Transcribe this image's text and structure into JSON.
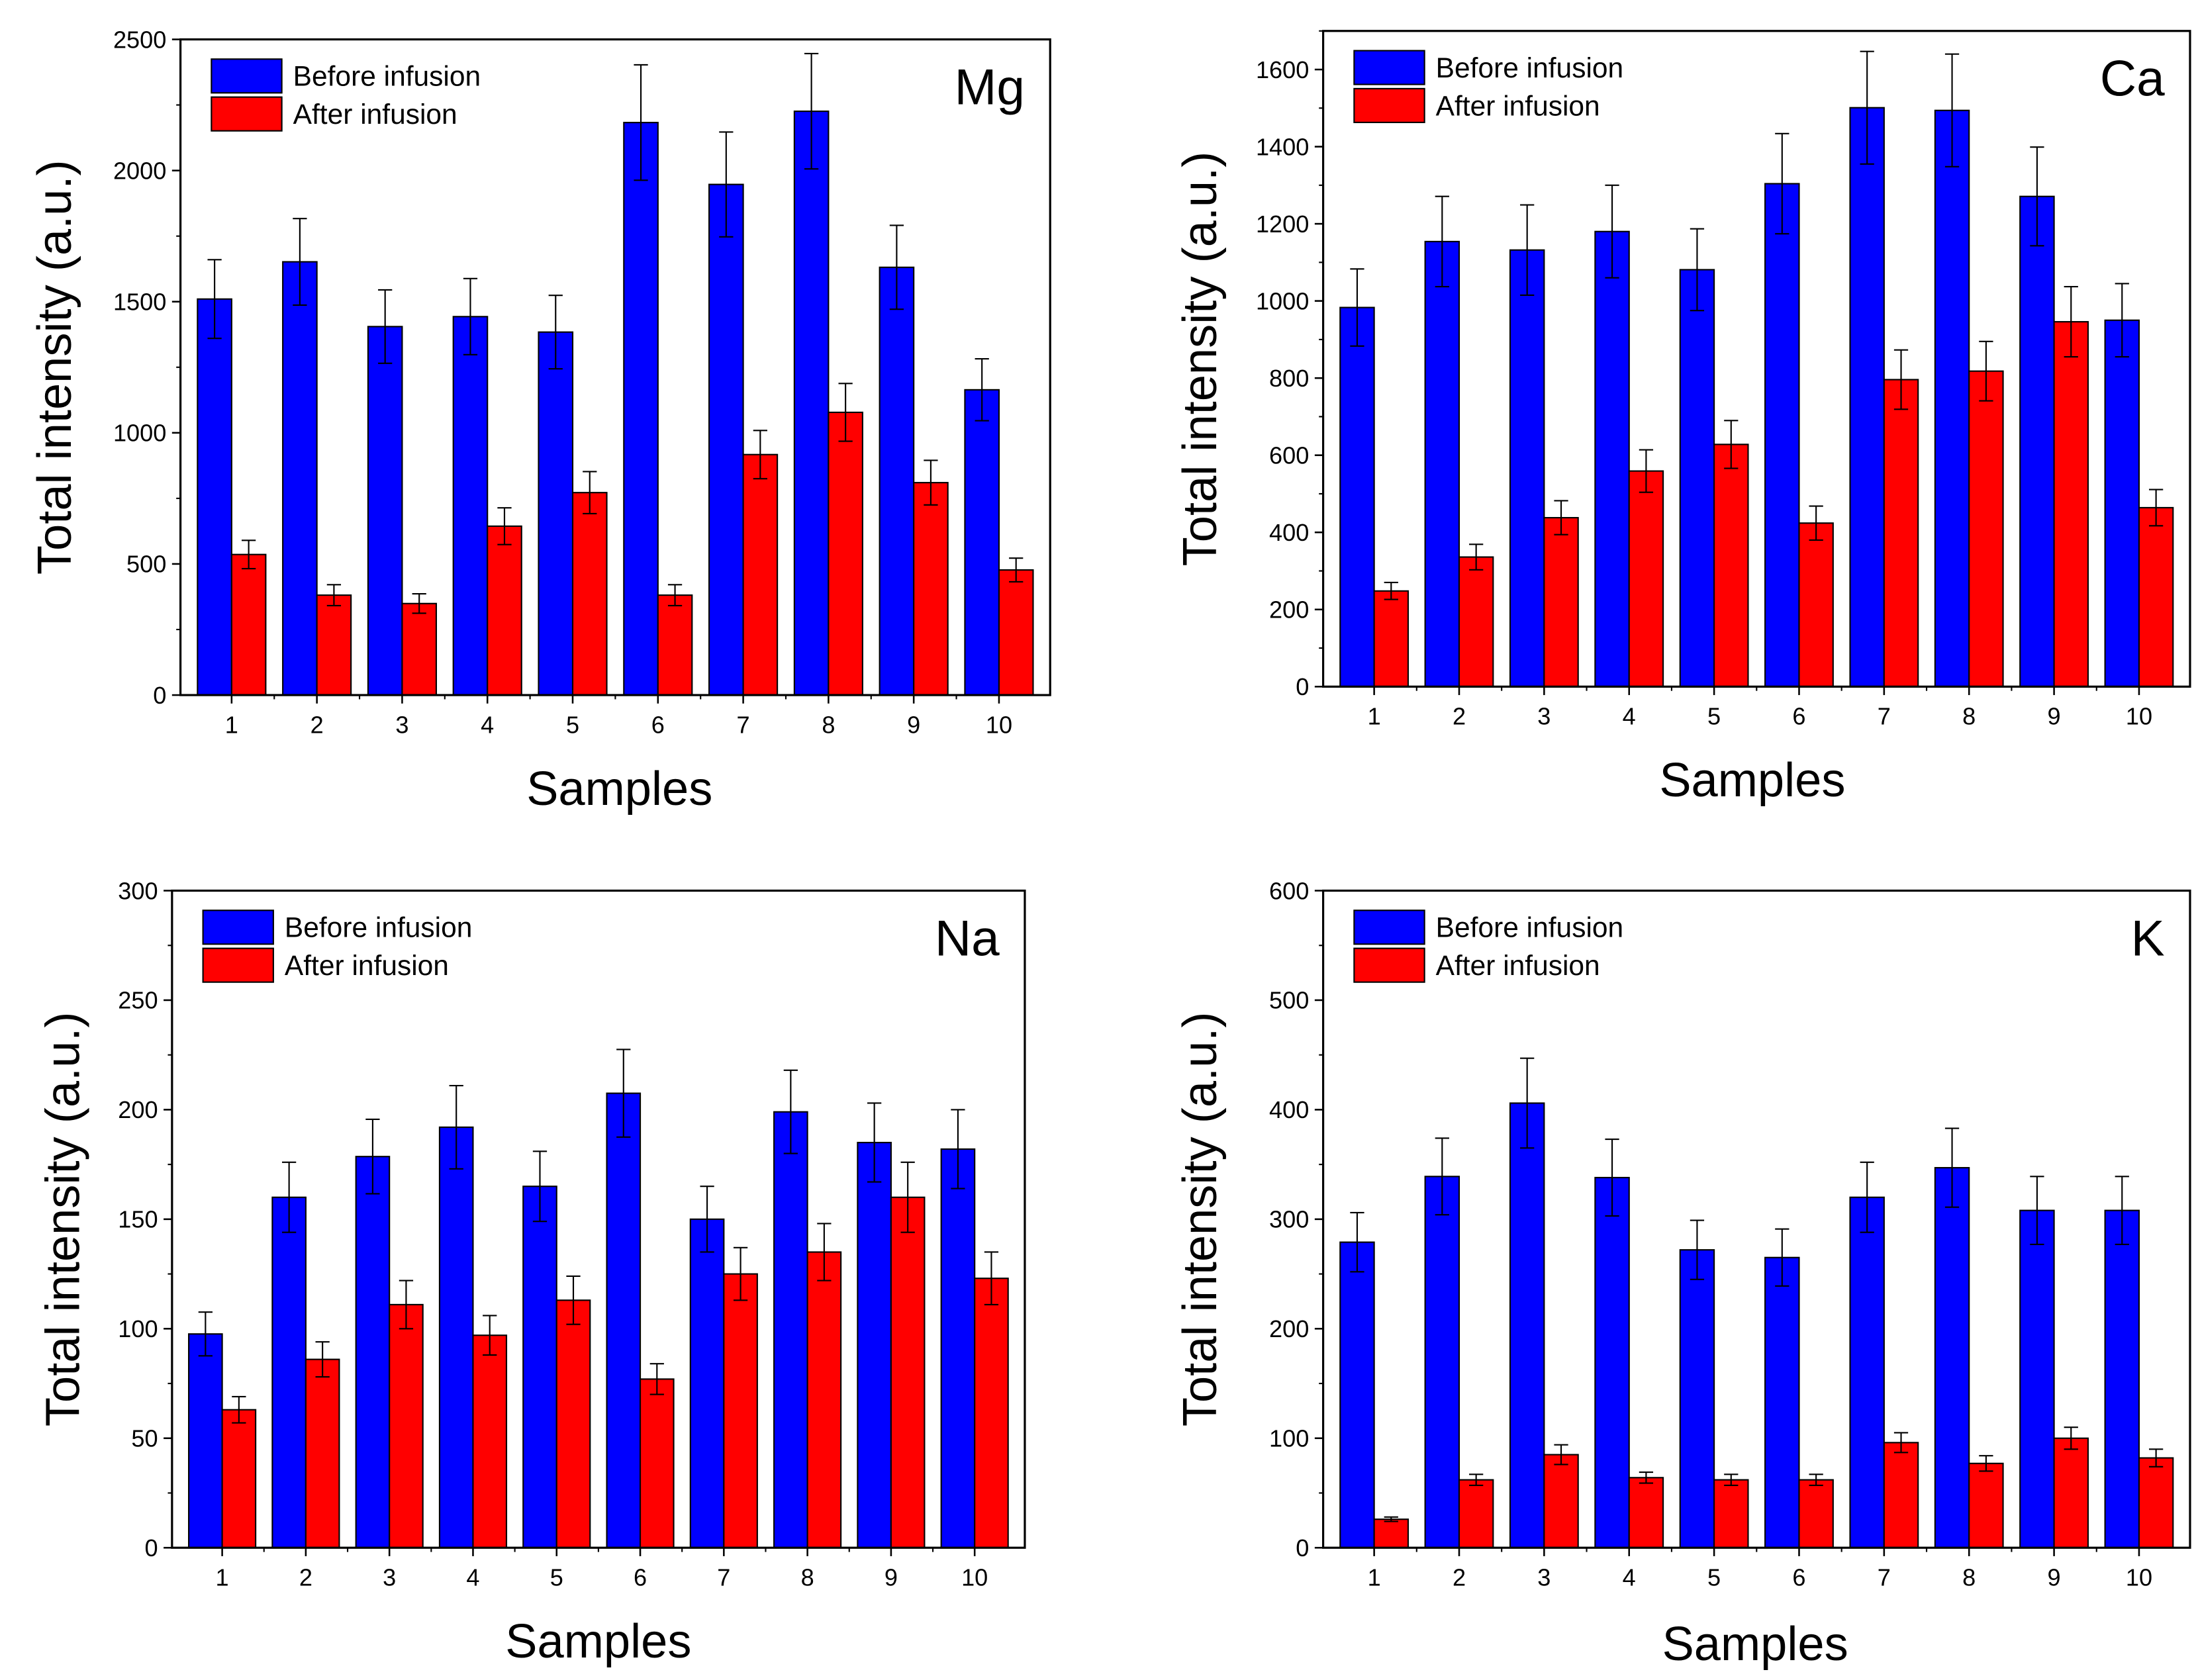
{
  "legend": {
    "before": "Before infusion",
    "after": "After infusion"
  },
  "colors": {
    "before": "#0000ff",
    "after": "#ff0000"
  },
  "chart_data": [
    {
      "type": "bar",
      "title": "Mg",
      "xlabel": "Samples",
      "ylabel": "Total intensity (a.u.)",
      "categories": [
        "1",
        "2",
        "3",
        "4",
        "5",
        "6",
        "7",
        "8",
        "9",
        "10"
      ],
      "ylim": [
        0,
        2500
      ],
      "yticks": [
        0,
        500,
        1000,
        1500,
        2000,
        2500
      ],
      "legend_position": "top-left",
      "series": [
        {
          "name": "Before infusion",
          "values": [
            1510,
            1652,
            1405,
            1443,
            1384,
            2183,
            1947,
            2226,
            1631,
            1164
          ],
          "errors": [
            150,
            165,
            140,
            145,
            140,
            220,
            200,
            220,
            160,
            118
          ]
        },
        {
          "name": "After infusion",
          "values": [
            536,
            381,
            349,
            644,
            772,
            381,
            917,
            1078,
            810,
            477
          ],
          "errors": [
            54,
            40,
            37,
            70,
            80,
            40,
            92,
            110,
            85,
            45
          ]
        }
      ]
    },
    {
      "type": "bar",
      "title": "Ca",
      "xlabel": "Samples",
      "ylabel": "Total intensity (a.u.)",
      "categories": [
        "1",
        "2",
        "3",
        "4",
        "5",
        "6",
        "7",
        "8",
        "9",
        "10"
      ],
      "ylim": [
        0,
        1700
      ],
      "yticks": [
        0,
        200,
        400,
        600,
        800,
        1000,
        1200,
        1400,
        1600
      ],
      "legend_position": "top-left",
      "series": [
        {
          "name": "Before infusion",
          "values": [
            983,
            1154,
            1132,
            1180,
            1081,
            1304,
            1501,
            1494,
            1271,
            950
          ],
          "errors": [
            100,
            117,
            117,
            120,
            106,
            130,
            146,
            146,
            128,
            95
          ]
        },
        {
          "name": "After infusion",
          "values": [
            248,
            336,
            438,
            559,
            628,
            424,
            796,
            818,
            946,
            464
          ],
          "errors": [
            22,
            33,
            44,
            55,
            62,
            44,
            77,
            77,
            91,
            47
          ]
        }
      ]
    },
    {
      "type": "bar",
      "title": "Na",
      "xlabel": "Samples",
      "ylabel": "Total intensity (a.u.)",
      "categories": [
        "1",
        "2",
        "3",
        "4",
        "5",
        "6",
        "7",
        "8",
        "9",
        "10"
      ],
      "ylim": [
        0,
        300
      ],
      "yticks": [
        0,
        50,
        100,
        150,
        200,
        250,
        300
      ],
      "legend_position": "top-left",
      "series": [
        {
          "name": "Before infusion",
          "values": [
            97.6,
            160,
            178.6,
            192,
            165,
            207.5,
            150,
            199,
            185,
            182
          ],
          "errors": [
            10,
            16,
            17,
            19,
            16,
            20,
            15,
            19,
            18,
            18
          ]
        },
        {
          "name": "After infusion",
          "values": [
            63,
            86,
            111,
            97,
            113,
            77,
            125,
            135,
            160,
            123
          ],
          "errors": [
            6,
            8,
            11,
            9,
            11,
            7,
            12,
            13,
            16,
            12
          ]
        }
      ]
    },
    {
      "type": "bar",
      "title": "K",
      "xlabel": "Samples",
      "ylabel": "Total intensity (a.u.)",
      "categories": [
        "1",
        "2",
        "3",
        "4",
        "5",
        "6",
        "7",
        "8",
        "9",
        "10"
      ],
      "ylim": [
        0,
        600
      ],
      "yticks": [
        0,
        100,
        200,
        300,
        400,
        500,
        600
      ],
      "legend_position": "top-left",
      "series": [
        {
          "name": "Before infusion",
          "values": [
            279,
            339,
            406,
            338,
            272,
            265,
            320,
            347,
            308,
            308
          ],
          "errors": [
            27,
            35,
            41,
            35,
            27,
            26,
            32,
            36,
            31,
            31
          ]
        },
        {
          "name": "After infusion",
          "values": [
            26,
            62,
            85,
            64,
            62,
            62,
            96,
            77,
            100,
            82
          ],
          "errors": [
            2,
            5,
            9,
            5,
            5,
            5,
            9,
            7,
            10,
            8
          ]
        }
      ]
    }
  ]
}
